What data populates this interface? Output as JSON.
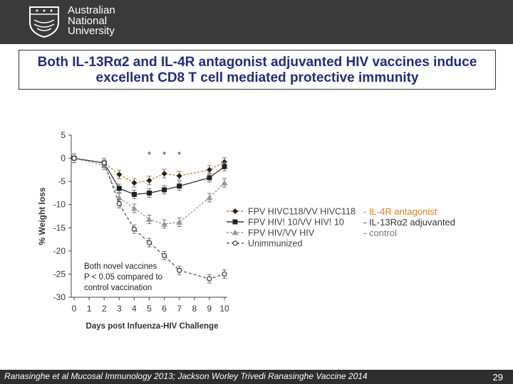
{
  "header": {
    "university_name": "Australian\nNational\nUniversity",
    "logo_icon": "anu-crest-icon"
  },
  "title": "Both IL-13Rα2 and IL-4R antagonist adjuvanted HIV vaccines induce\nexcellent CD8 T cell mediated protective immunity",
  "annotation_labels": [
    "- IL-4R antagonist",
    "- IL-13Rα2 adjuvanted",
    "- control"
  ],
  "significance_note": "Both novel vaccines\nP < 0.05 compared to\ncontrol vaccination",
  "footer": {
    "citation": "Ranasinghe et al Mucosal Immunology 2013;  Jackson Worley Trivedi Ranasinghe Vaccine 2014",
    "page_number": "29"
  },
  "colors": {
    "header_bg": "#3a3a3a",
    "title_text": "#1f2f7a",
    "il4r": "#e07b1a",
    "il13": "#333333",
    "control": "#999999",
    "unimmunized": "#555555"
  },
  "chart_data": {
    "type": "line",
    "xlabel": "Days post Infuenza-HIV Challenge",
    "ylabel": "% Weight loss",
    "xlim": [
      0,
      10
    ],
    "ylim": [
      -30,
      5
    ],
    "x_ticks": [
      0,
      1,
      2,
      3,
      4,
      5,
      6,
      7,
      8,
      9,
      10
    ],
    "y_ticks": [
      5,
      0,
      -5,
      -10,
      -15,
      -20,
      -25,
      -30
    ],
    "x": [
      0,
      2,
      3,
      4,
      5,
      6,
      7,
      9,
      10
    ],
    "legend_position": "right",
    "asterisks": [
      "*",
      "*",
      "*"
    ],
    "asterisk_days": [
      5,
      6,
      7
    ],
    "series": [
      {
        "name": "FPV HIVC118/VV HIVC118",
        "marker": "diamond",
        "color": "#e07b1a",
        "values": [
          0,
          -1,
          -3.5,
          -5.3,
          -4.8,
          -3.3,
          -3.8,
          -2.5,
          -0.8
        ]
      },
      {
        "name": "FPV HIV! 10/VV HIV! 10",
        "marker": "square",
        "color": "#333333",
        "values": [
          0,
          -1,
          -6.5,
          -7.8,
          -7.5,
          -6.8,
          -6,
          -4.2,
          -1.8
        ]
      },
      {
        "name": "FPV HIV/VV HIV",
        "marker": "triangle",
        "color": "#999999",
        "values": [
          0,
          -1.5,
          -8.5,
          -10.8,
          -13.2,
          -14.2,
          -13.8,
          -8.5,
          -5.3
        ]
      },
      {
        "name": "Unimmunized",
        "marker": "circle-open",
        "color": "#555555",
        "values": [
          0,
          -1,
          -9.8,
          -15.3,
          -18.2,
          -21,
          -24.2,
          -26,
          -25
        ]
      }
    ]
  }
}
